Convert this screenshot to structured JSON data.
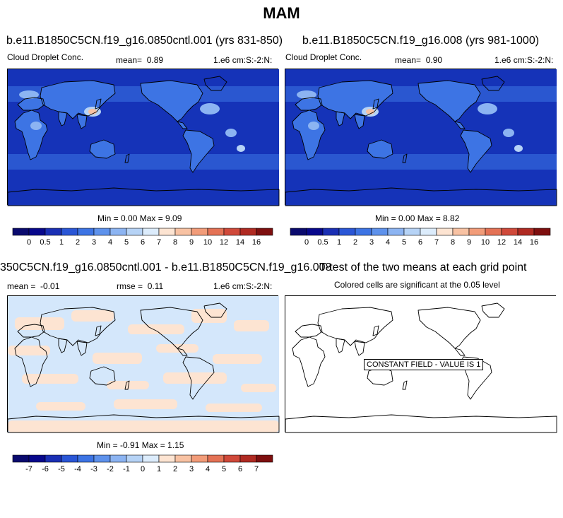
{
  "title": "MAM",
  "colors": {
    "field_palette": [
      "#08088c",
      "#1a2fb4",
      "#2a56d6",
      "#3d74e4",
      "#5e92ec",
      "#8cb4f2",
      "#b6d3f6",
      "#dcecfc",
      "#fde4d2",
      "#f8c2a3",
      "#f29c79",
      "#e47255",
      "#d0493a",
      "#b02a22",
      "#7e0f0f"
    ],
    "field_background": "#1533b8",
    "diff_light_blue": "#d4e7fb",
    "diff_peach": "#fde4d2"
  },
  "panels": {
    "top_left": {
      "title": "b.e11.B1850C5CN.f19_g16.0850cntl.001 (yrs 831-850)",
      "field_name": "Cloud Droplet Conc.",
      "mean_label": "mean=",
      "mean_value": "0.89",
      "units": "1.e6 cm:S:-2:N:",
      "minmax": "Min =  0.00 Max =  9.09"
    },
    "top_right": {
      "title": "b.e11.B1850C5CN.f19_g16.008 (yrs 981-1000)",
      "field_name": "Cloud Droplet Conc.",
      "mean_label": "mean=",
      "mean_value": "0.90",
      "units": "1.e6 cm:S:-2:N:",
      "minmax": "Min =  0.00 Max =  8.82"
    },
    "bottom_left": {
      "title": "350C5CN.f19_g16.0850cntl.001 - b.e11.B1850C5CN.f19_g16.008",
      "mean_label": "mean =",
      "mean_value": "-0.01",
      "rmse_label": "rmse =",
      "rmse_value": "0.11",
      "units": "1.e6 cm:S:-2:N:",
      "minmax": "Min = -0.91 Max =  1.15"
    },
    "bottom_right": {
      "title": "T-test of the two means at each grid point",
      "subtitle": "Colored cells are significant at the 0.05 level",
      "stamp": "CONSTANT FIELD - VALUE IS 1"
    }
  },
  "colorbars": {
    "field_labels": [
      "0",
      "0.5",
      "1",
      "2",
      "3",
      "4",
      "5",
      "6",
      "7",
      "8",
      "9",
      "10",
      "12",
      "14",
      "16"
    ],
    "diff_labels": [
      "-7",
      "-6",
      "-5",
      "-4",
      "-3",
      "-2",
      "-1",
      "0",
      "1",
      "2",
      "3",
      "4",
      "5",
      "6",
      "7"
    ]
  }
}
